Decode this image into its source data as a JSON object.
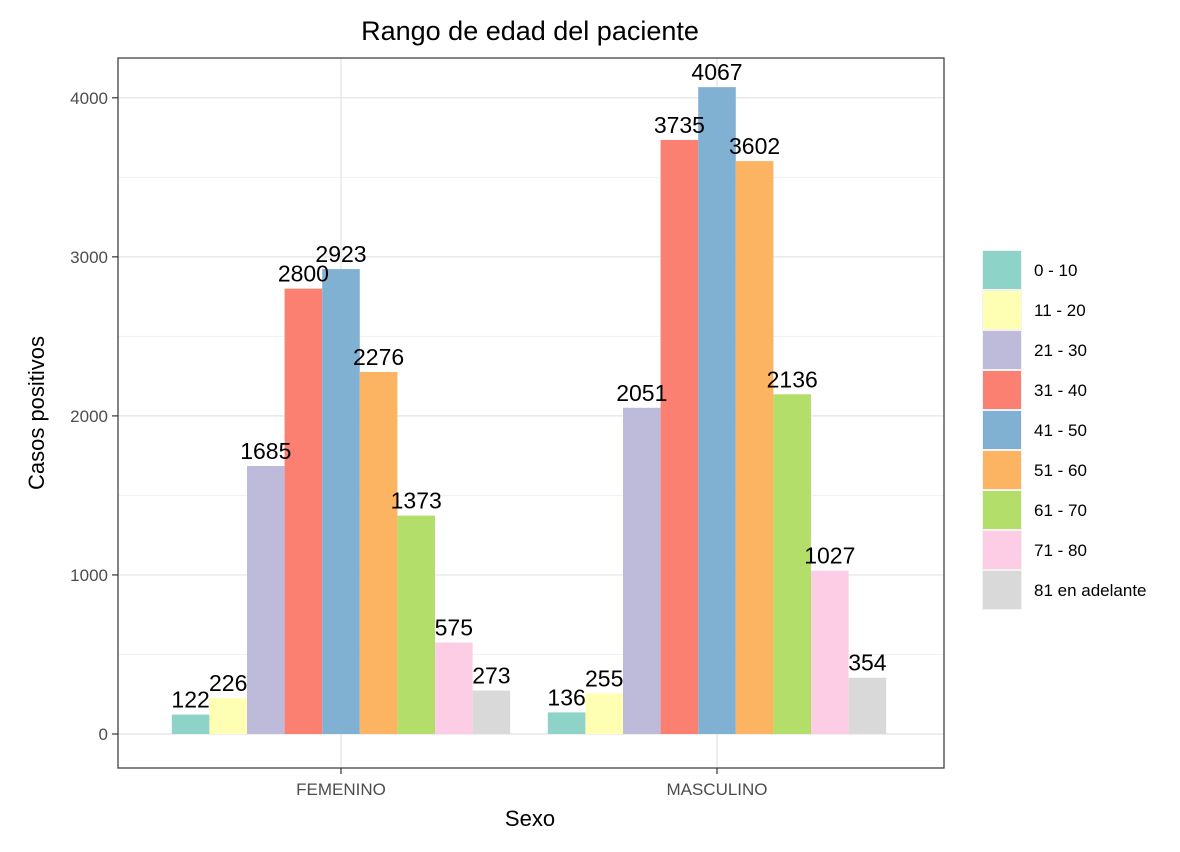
{
  "chart_data": {
    "type": "bar",
    "title": "Rango de edad del paciente",
    "xlabel": "Sexo",
    "ylabel": "Casos positivos",
    "categories": [
      "FEMENINO",
      "MASCULINO"
    ],
    "ylim": [
      -200,
      4200
    ],
    "yticks": [
      0,
      1000,
      2000,
      3000,
      4000
    ],
    "grid": true,
    "legend_position": "right",
    "series": [
      {
        "name": "0 - 10",
        "color": "#8dd3c7",
        "values": [
          122,
          136
        ]
      },
      {
        "name": "11 - 20",
        "color": "#ffffb3",
        "values": [
          226,
          255
        ]
      },
      {
        "name": "21 - 30",
        "color": "#bebada",
        "values": [
          1685,
          2051
        ]
      },
      {
        "name": "31 - 40",
        "color": "#fb8072",
        "values": [
          2800,
          3735
        ]
      },
      {
        "name": "41 - 50",
        "color": "#80b1d3",
        "values": [
          2923,
          4067
        ]
      },
      {
        "name": "51 - 60",
        "color": "#fdb462",
        "values": [
          2276,
          3602
        ]
      },
      {
        "name": "61 - 70",
        "color": "#b3de69",
        "values": [
          1373,
          2136
        ]
      },
      {
        "name": "71 - 80",
        "color": "#fccde5",
        "values": [
          575,
          1027
        ]
      },
      {
        "name": "81 en adelante",
        "color": "#d9d9d9",
        "values": [
          273,
          354
        ]
      }
    ]
  }
}
